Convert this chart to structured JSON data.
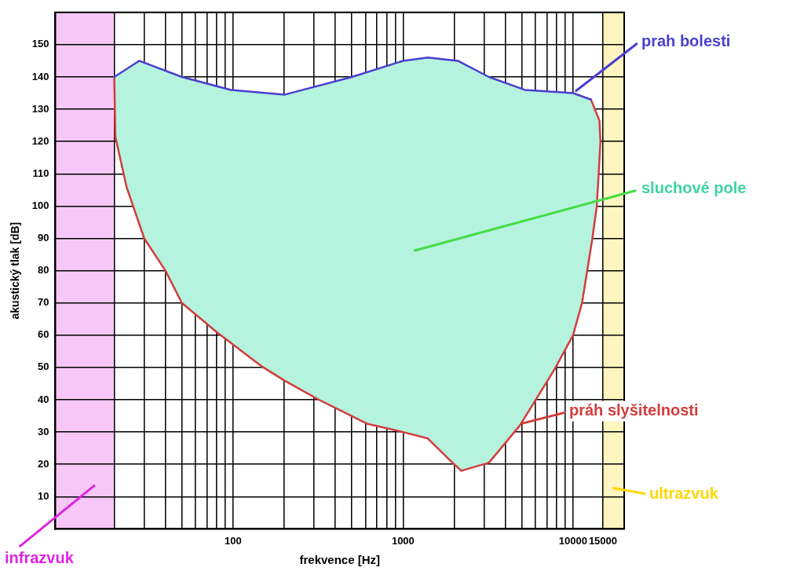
{
  "chart_data": {
    "type": "line",
    "xlabel": "frekvence [Hz]",
    "ylabel": "akustický tlak [dB]",
    "log": "x",
    "grid": true,
    "legend": "right",
    "marker": "none",
    "line_style": "solid",
    "xlim": [
      9,
      20000
    ],
    "xticks": [
      {
        "value": 20,
        "label": null
      },
      {
        "value": 30,
        "label": null
      },
      {
        "value": 40,
        "label": null
      },
      {
        "value": 50,
        "label": null
      },
      {
        "value": 60,
        "label": null
      },
      {
        "value": 70,
        "label": null
      },
      {
        "value": 80,
        "label": null
      },
      {
        "value": 90,
        "label": null
      },
      100,
      {
        "value": 200,
        "label": null
      },
      {
        "value": 300,
        "label": null
      },
      {
        "value": 400,
        "label": null
      },
      {
        "value": 500,
        "label": null
      },
      {
        "value": 600,
        "label": null
      },
      {
        "value": 700,
        "label": null
      },
      {
        "value": 800,
        "label": null
      },
      {
        "value": 900,
        "label": null
      },
      1000,
      {
        "value": 2000,
        "label": null
      },
      {
        "value": 3000,
        "label": null
      },
      {
        "value": 4000,
        "label": null
      },
      {
        "value": 5000,
        "label": null
      },
      {
        "value": 6000,
        "label": null
      },
      {
        "value": 7000,
        "label": null
      },
      {
        "value": 8000,
        "label": null
      },
      {
        "value": 9000,
        "label": null
      },
      10000,
      15000
    ],
    "ylim": [
      0,
      160
    ],
    "yticks": [
      10,
      20,
      30,
      40,
      50,
      60,
      70,
      80,
      90,
      100,
      110,
      120,
      130,
      140,
      150
    ],
    "series": [
      {
        "type": "area",
        "color": "#b5f3df",
        "x": [
          20,
          28,
          50,
          97,
          200,
          500,
          1000,
          1400,
          2100,
          3200,
          5200,
          10000,
          12750,
          14300,
          14500,
          13800,
          13000,
          11300,
          10000,
          7800,
          4860,
          3200,
          2200,
          1870,
          1400,
          1000,
          620,
          320,
          200,
          146,
          80,
          50,
          40,
          30,
          23.6,
          20.3
        ],
        "values": [
          140,
          145,
          140,
          136,
          134.5,
          140,
          145,
          146,
          145,
          140,
          136,
          135,
          133,
          126.5,
          120,
          100,
          90,
          70,
          60,
          49.5,
          32,
          20.5,
          18,
          21.5,
          28,
          30,
          32.5,
          40,
          46,
          50.5,
          61,
          70,
          80,
          90,
          106,
          121.5
        ]
      },
      {
        "name": "prah bolesti",
        "color": "#4b3fcf",
        "x": [
          20,
          28,
          50,
          97,
          200,
          500,
          1000,
          1400,
          2100,
          3200,
          5200,
          10000,
          12750
        ],
        "values": [
          140,
          145,
          140,
          136,
          134.5,
          140,
          145,
          146,
          145,
          140,
          136,
          135,
          133
        ]
      },
      {
        "name": "práh slyšitelnosti",
        "color": "#d43c3c",
        "x": [
          20,
          20.3,
          23.6,
          30,
          40,
          50,
          80,
          146,
          200,
          320,
          620,
          1000,
          1400,
          1870,
          2200,
          3200,
          4860,
          7800,
          10000,
          11300,
          13000,
          13800,
          14500,
          14300,
          12750
        ],
        "values": [
          140,
          121.5,
          106,
          90,
          80,
          70,
          61,
          50.5,
          46,
          40,
          32.5,
          30,
          28,
          21.5,
          18,
          20.5,
          32,
          49.5,
          60,
          70,
          90,
          100,
          120,
          126.5,
          133
        ]
      }
    ],
    "bands": [
      {
        "axis": "x",
        "from": 9,
        "to": 20,
        "label": "infrazvuk",
        "color": "#f7c8f7"
      },
      {
        "axis": "x",
        "from": 15000,
        "to": 20000,
        "label": "ultrazvuk",
        "color": "#fff5c0"
      }
    ],
    "annotations": [
      "sluchové pole"
    ]
  }
}
